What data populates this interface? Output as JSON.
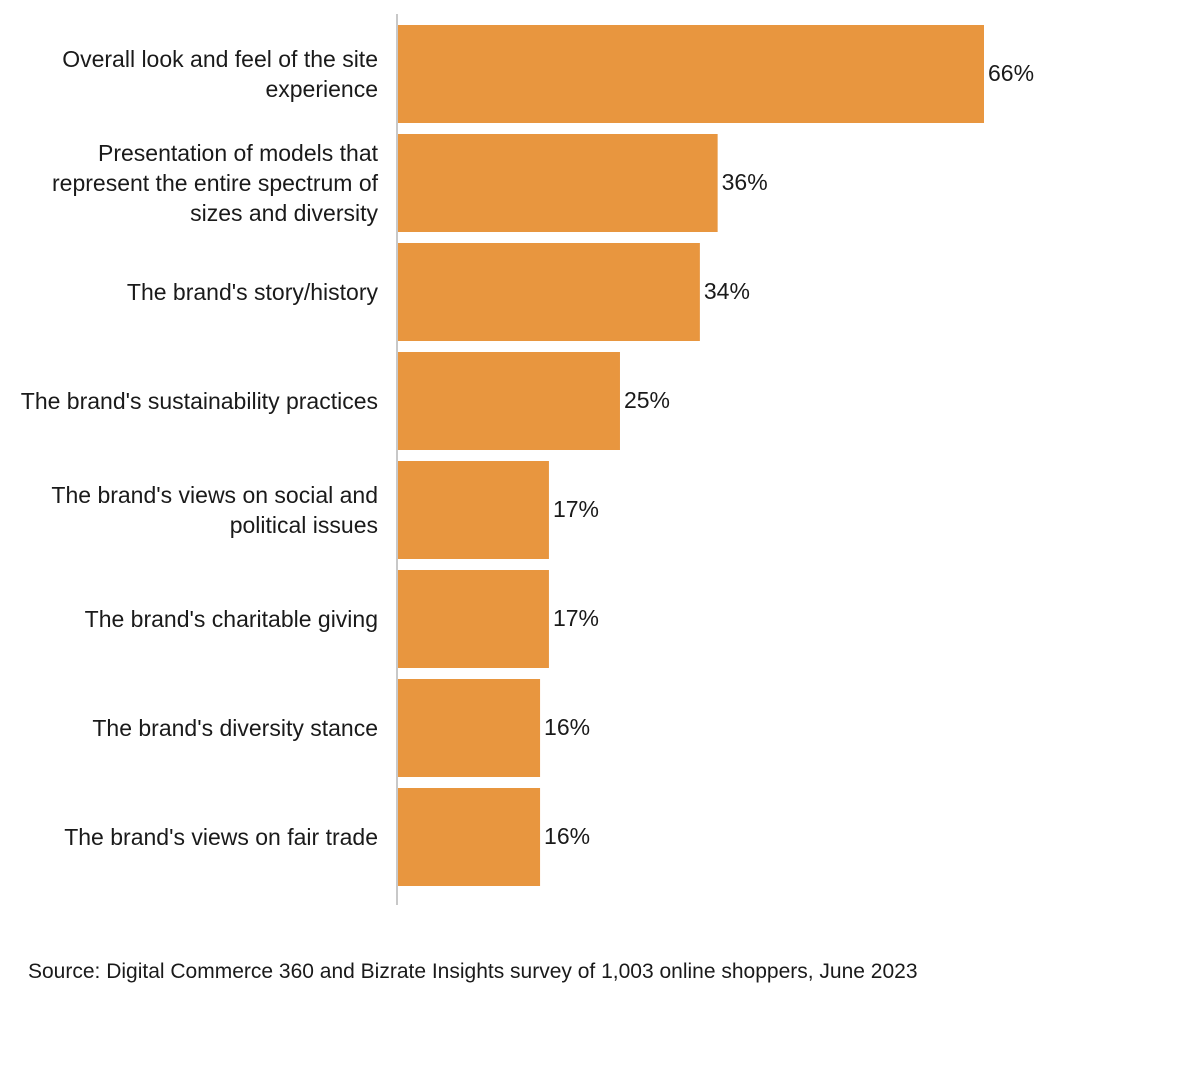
{
  "chart_data": {
    "type": "bar",
    "orientation": "horizontal",
    "categories": [
      "Overall look and feel of the site experience",
      "Presentation of models that represent the entire spectrum of sizes and diversity",
      "The brand's story/history",
      "The brand's sustainability practices",
      "The brand's views on social and political issues",
      "The brand's charitable giving",
      "The brand's diversity stance",
      "The brand's views on fair trade"
    ],
    "values": [
      66,
      36,
      34,
      25,
      17,
      17,
      16,
      16
    ],
    "data_labels": [
      "66%",
      "36%",
      "34%",
      "25%",
      "17%",
      "17%",
      "16%",
      "16%"
    ],
    "xlim": [
      0,
      66
    ],
    "grid": false,
    "bar_color": "#E8963F"
  },
  "source": "Source:  Digital Commerce 360 and Bizrate Insights survey of 1,003 online shoppers, June 2023"
}
